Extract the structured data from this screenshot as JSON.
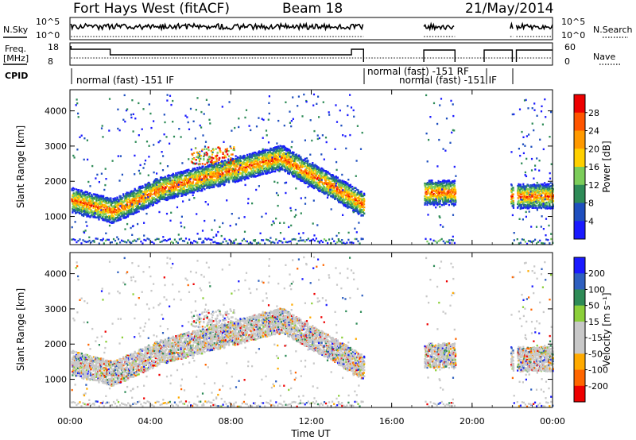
{
  "header": {
    "radar": "Fort Hays West (fitACF)",
    "beam": "Beam 18",
    "date": "21/May/2014"
  },
  "status": {
    "nsky_label": "N.Sky",
    "nsearch_label": "N.Search",
    "freq_label": "Freq.",
    "freq_unit": "[MHz]",
    "nave_label": "Nave",
    "cpid_label": "CPID",
    "nsky_ticks": [
      "10^5",
      "10^0"
    ],
    "nsearch_ticks": [
      "10^5",
      "10^0"
    ],
    "freq_ticks": [
      "18",
      "8"
    ],
    "nave_ticks": [
      "60",
      "0"
    ],
    "cpid_modes": [
      "normal (fast) -151 IF",
      "normal (fast) -151 RF",
      "normal (fast) -151 IF"
    ]
  },
  "colors": {
    "power_scale": [
      "#1a1aff",
      "#1f4fbf",
      "#2e8b57",
      "#7ccd5a",
      "#ffd000",
      "#ff9900",
      "#ff5500",
      "#ee0000"
    ],
    "velocity_scale": [
      "#1a1aff",
      "#2e5fbf",
      "#2e8b57",
      "#8ccf3a",
      "#c8c8c8",
      "#c8c8c8",
      "#ffaa00",
      "#ff6600",
      "#ee0000"
    ]
  },
  "chart_data": [
    {
      "type": "heatmap",
      "name": "Power",
      "ylabel": "Slant Range [km]",
      "yticks": [
        "1000",
        "2000",
        "3000",
        "4000"
      ],
      "ylim": [
        200,
        4600
      ],
      "colorbar_label": "Power [dB]",
      "colorbar_ticks": [
        "4",
        "8",
        "12",
        "16",
        "20",
        "24",
        "28"
      ],
      "clim": [
        0,
        32
      ]
    },
    {
      "type": "heatmap",
      "name": "Velocity",
      "ylabel": "Slant Range [km]",
      "yticks": [
        "1000",
        "2000",
        "3000",
        "4000"
      ],
      "ylim": [
        200,
        4600
      ],
      "colorbar_label": "Velocity [m s⁻¹]",
      "colorbar_ticks": [
        "200",
        "100",
        "50",
        "15",
        "-15",
        "-50",
        "-100",
        "-200"
      ]
    }
  ],
  "xaxis": {
    "label": "Time UT",
    "ticks": [
      "00:00",
      "04:00",
      "08:00",
      "12:00",
      "16:00",
      "20:00",
      "00:00"
    ],
    "range_hours": [
      0,
      24
    ]
  }
}
